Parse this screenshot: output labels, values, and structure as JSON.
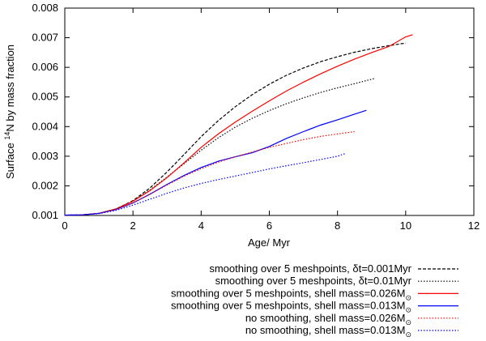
{
  "chart_data": {
    "type": "line",
    "title": "",
    "xlabel": "Age/ Myr",
    "ylabel_parts": {
      "pre": "Surface ",
      "sup": "14",
      "post": "N by mass fraction"
    },
    "xlim": [
      0,
      12
    ],
    "ylim": [
      0.001,
      0.008
    ],
    "xticks": [
      0,
      2,
      4,
      6,
      8,
      10,
      12
    ],
    "xtick_labels": [
      "0",
      "2",
      "4",
      "6",
      "8",
      "10",
      "12"
    ],
    "yticks": [
      0.001,
      0.002,
      0.003,
      0.004,
      0.005,
      0.006,
      0.007,
      0.008
    ],
    "ytick_labels": [
      "0.001",
      "0.002",
      "0.003",
      "0.004",
      "0.005",
      "0.006",
      "0.007",
      "0.008"
    ],
    "legend_position": "below-right",
    "series": [
      {
        "name": "smoothing over 5 meshpoints, δt=0.001Myr",
        "label_parts": {
          "pre": "smoothing over 5 meshpoints, δt=0.001Myr",
          "sub": ""
        },
        "color": "#000000",
        "style": "dashed",
        "x": [
          0,
          0.5,
          1,
          1.5,
          2,
          2.5,
          3,
          3.5,
          4,
          4.5,
          5,
          5.5,
          6,
          6.5,
          7,
          7.5,
          8,
          8.5,
          9,
          9.5,
          10
        ],
        "y": [
          0.00101,
          0.00102,
          0.00107,
          0.00122,
          0.0015,
          0.00193,
          0.00247,
          0.00306,
          0.00366,
          0.0042,
          0.00467,
          0.00508,
          0.00543,
          0.00573,
          0.00598,
          0.00619,
          0.00636,
          0.00651,
          0.00663,
          0.00673,
          0.00682
        ]
      },
      {
        "name": "smoothing over 5 meshpoints, δt=0.01Myr",
        "label_parts": {
          "pre": "smoothing over 5 meshpoints,  δt=0.01Myr",
          "sub": ""
        },
        "color": "#000000",
        "style": "dotted",
        "x": [
          0,
          0.5,
          1,
          1.5,
          2,
          2.5,
          3,
          3.5,
          4,
          4.5,
          5,
          5.5,
          6,
          6.5,
          7,
          7.5,
          8,
          8.5,
          9.1
        ],
        "y": [
          0.00101,
          0.00102,
          0.00107,
          0.00122,
          0.00148,
          0.00186,
          0.0023,
          0.00275,
          0.0032,
          0.00362,
          0.00398,
          0.00428,
          0.00454,
          0.00477,
          0.00497,
          0.00515,
          0.00531,
          0.00545,
          0.00563
        ]
      },
      {
        "name": "smoothing over 5 meshpoints, shell mass=0.026M☉",
        "label_parts": {
          "pre": "smoothing over 5 meshpoints, shell mass=0.026M",
          "sub": "⊙"
        },
        "color": "#ff0000",
        "style": "solid",
        "x": [
          0,
          0.5,
          1,
          1.5,
          2,
          2.5,
          3,
          3.5,
          4,
          4.5,
          5,
          5.5,
          6,
          6.5,
          7,
          7.5,
          8,
          8.5,
          9,
          9.5,
          10,
          10.2
        ],
        "y": [
          0.00101,
          0.00102,
          0.00107,
          0.00122,
          0.00148,
          0.00184,
          0.00228,
          0.00278,
          0.0033,
          0.00375,
          0.00415,
          0.00452,
          0.00487,
          0.0052,
          0.0055,
          0.00578,
          0.00604,
          0.00628,
          0.0065,
          0.0067,
          0.00703,
          0.0071
        ]
      },
      {
        "name": "smoothing over 5 meshpoints, shell mass=0.013M☉",
        "label_parts": {
          "pre": "smoothing over 5 meshpoints, shell mass=0.013M",
          "sub": "⊙"
        },
        "color": "#0000ff",
        "style": "solid",
        "x": [
          0,
          0.5,
          1,
          1.5,
          2,
          2.5,
          3,
          3.5,
          4,
          4.5,
          5,
          5.5,
          6,
          6.5,
          7,
          7.5,
          8,
          8.5,
          8.85
        ],
        "y": [
          0.00101,
          0.00102,
          0.00107,
          0.0012,
          0.00142,
          0.00172,
          0.00205,
          0.00235,
          0.00262,
          0.00283,
          0.00298,
          0.00312,
          0.00333,
          0.0036,
          0.00383,
          0.00405,
          0.00423,
          0.00442,
          0.00455
        ]
      },
      {
        "name": "no smoothing, shell mass=0.026M☉",
        "label_parts": {
          "pre": "no smoothing, shell mass=0.026M",
          "sub": "⊙"
        },
        "color": "#ff0000",
        "style": "dotted",
        "x": [
          0,
          0.5,
          1,
          1.5,
          2,
          2.5,
          3,
          3.5,
          4,
          4.5,
          5,
          5.5,
          6,
          6.5,
          7,
          7.5,
          8,
          8.5
        ],
        "y": [
          0.00101,
          0.00102,
          0.00107,
          0.00121,
          0.00143,
          0.00172,
          0.00203,
          0.00233,
          0.00258,
          0.0028,
          0.00298,
          0.00314,
          0.0033,
          0.00343,
          0.00356,
          0.00367,
          0.00375,
          0.00383
        ]
      },
      {
        "name": "no smoothing, shell mass=0.013M☉",
        "label_parts": {
          "pre": "no smoothing, shell mass=0.013M",
          "sub": "⊙"
        },
        "color": "#0000ff",
        "style": "dotted",
        "x": [
          0,
          0.5,
          1,
          1.5,
          2,
          2.5,
          3,
          3.5,
          4,
          4.5,
          5,
          5.5,
          6,
          6.5,
          7,
          7.5,
          8,
          8.25
        ],
        "y": [
          0.00101,
          0.00102,
          0.00106,
          0.00117,
          0.00135,
          0.00155,
          0.00175,
          0.00193,
          0.00208,
          0.00221,
          0.00233,
          0.00245,
          0.00257,
          0.00268,
          0.00278,
          0.00289,
          0.003,
          0.0031
        ]
      }
    ]
  }
}
